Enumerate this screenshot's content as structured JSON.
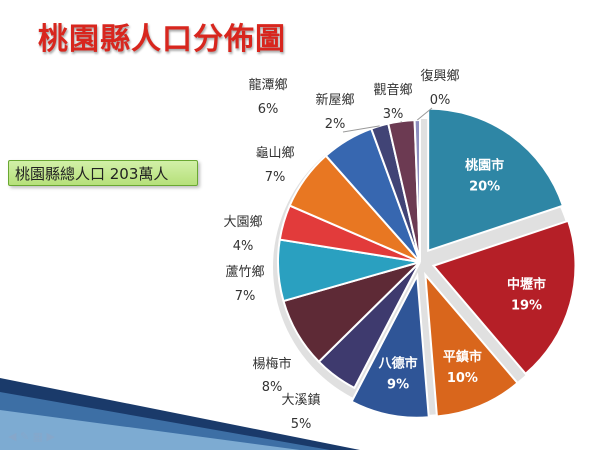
{
  "page": {
    "title": "桃園縣人口分佈圖",
    "total_label": "桃園縣總人口 203萬人"
  },
  "colors": {
    "title": "#d8261e",
    "total_box": "#c4e890"
  },
  "chart_data": {
    "type": "pie",
    "title": "桃園縣人口分佈圖",
    "categories": [
      "桃園市",
      "中壢市",
      "平鎮市",
      "八德市",
      "大溪鎮",
      "楊梅市",
      "蘆竹鄉",
      "大園鄉",
      "龜山鄉",
      "龍潭鄉",
      "新屋鄉",
      "觀音鄉",
      "復興鄉"
    ],
    "values": [
      20,
      19,
      10,
      9,
      5,
      8,
      7,
      4,
      7,
      6,
      2,
      3,
      0
    ],
    "value_labels": [
      "20%",
      "19%",
      "10%",
      "9%",
      "5%",
      "8%",
      "7%",
      "4%",
      "7%",
      "6%",
      "2%",
      "3%",
      "0%"
    ],
    "colors": [
      "#2e86a5",
      "#b51f27",
      "#d9661c",
      "#2f5597",
      "#3e3a6e",
      "#5e2a36",
      "#2aa0c0",
      "#e23b3b",
      "#e87722",
      "#3767b0",
      "#414476",
      "#6c3a52",
      "#8d8dbf"
    ],
    "exploded": [
      true,
      true,
      true,
      true,
      false,
      false,
      false,
      false,
      false,
      false,
      false,
      false,
      false
    ],
    "label_position": [
      "inside",
      "inside",
      "inside",
      "inside",
      "outside",
      "outside",
      "outside",
      "outside",
      "outside",
      "outside",
      "outside",
      "outside",
      "outside"
    ],
    "unit": "%"
  }
}
